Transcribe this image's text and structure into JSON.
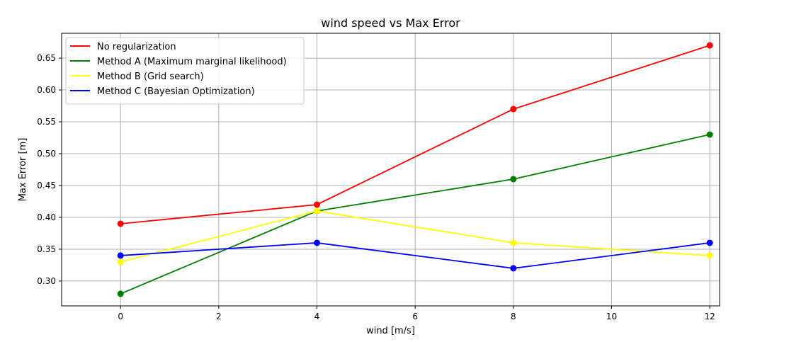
{
  "chart_data": {
    "type": "line",
    "title": "wind speed vs Max Error",
    "xlabel": "wind [m/s]",
    "ylabel": "Max Error [m]",
    "x": [
      0,
      4,
      8,
      12
    ],
    "xlim": [
      -1.2,
      12.2
    ],
    "ylim": [
      0.261,
      0.689
    ],
    "xticks": [
      0,
      2,
      4,
      6,
      8,
      10,
      12
    ],
    "xtick_labels": [
      "0",
      "2",
      "4",
      "6",
      "8",
      "10",
      "12"
    ],
    "yticks": [
      0.3,
      0.35,
      0.4,
      0.45,
      0.5,
      0.55,
      0.6,
      0.65
    ],
    "ytick_labels": [
      "0.30",
      "0.35",
      "0.40",
      "0.45",
      "0.50",
      "0.55",
      "0.60",
      "0.65"
    ],
    "grid": true,
    "legend_position": "top-left",
    "series": [
      {
        "name": "No regularization",
        "color": "#ff0000",
        "values": [
          0.39,
          0.42,
          0.57,
          0.67
        ]
      },
      {
        "name": "Method A (Maximum marginal likelihood)",
        "color": "#008000",
        "values": [
          0.28,
          0.41,
          0.46,
          0.53
        ]
      },
      {
        "name": "Method B (Grid search)",
        "color": "#ffff00",
        "values": [
          0.33,
          0.41,
          0.36,
          0.34
        ]
      },
      {
        "name": "Method C (Bayesian Optimization)",
        "color": "#0000ff",
        "values": [
          0.34,
          0.36,
          0.32,
          0.36
        ]
      }
    ]
  }
}
